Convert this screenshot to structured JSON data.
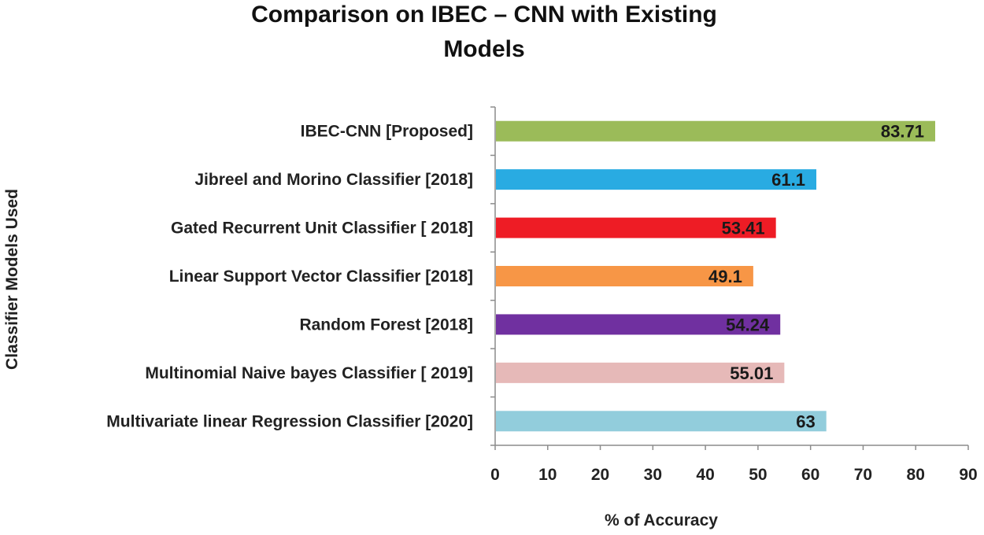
{
  "chart_data": {
    "type": "bar",
    "orientation": "horizontal",
    "title_line1": "Comparison on IBEC – CNN with Existing",
    "title_line2": "Models",
    "xlabel": "% of Accuracy",
    "ylabel": "Classifier Models Used",
    "xlim": [
      0,
      90
    ],
    "xticks": [
      0,
      10,
      20,
      30,
      40,
      50,
      60,
      70,
      80,
      90
    ],
    "grid": false,
    "legend": "none",
    "categories": [
      "IBEC-CNN [Proposed]",
      "Jibreel and Morino Classifier [2018]",
      "Gated Recurrent Unit Classifier [ 2018]",
      "Linear Support Vector Classifier [2018]",
      "Random Forest [2018]",
      "Multinomial Naive bayes Classifier [ 2019]",
      "Multivariate linear Regression Classifier [2020]"
    ],
    "values": [
      83.71,
      61.1,
      53.41,
      49.1,
      54.24,
      55.01,
      63
    ],
    "value_labels": [
      "83.71",
      "61.1",
      "53.41",
      "49.1",
      "54.24",
      "55.01",
      "63"
    ],
    "colors": [
      "#9bbb59",
      "#29abe2",
      "#ee1c25",
      "#f79646",
      "#7030a0",
      "#e6b9b8",
      "#92cddc"
    ]
  }
}
